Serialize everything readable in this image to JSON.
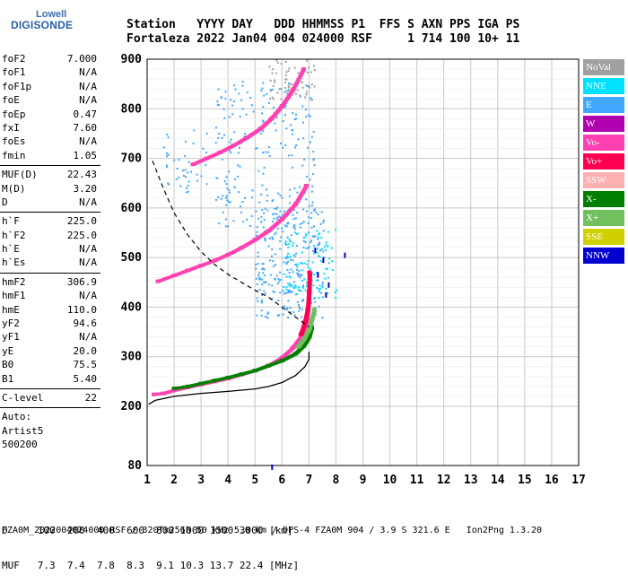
{
  "logo": {
    "top": "Lowell",
    "bottom": "DIGISONDE"
  },
  "header": {
    "line1": "Station   YYYY DAY   DDD HHMMSS P1  FFS S AXN PPS IGA PS",
    "line2": "Fortaleza 2022 Jan04 004 024000 RSF     1 714 100 10+ 11"
  },
  "params": {
    "group1": [
      {
        "name": "foF2",
        "value": "7.000"
      },
      {
        "name": "foF1",
        "value": "N/A"
      },
      {
        "name": "foF1p",
        "value": "N/A"
      },
      {
        "name": "foE",
        "value": "N/A"
      },
      {
        "name": "foEp",
        "value": "0.47"
      },
      {
        "name": "fxI",
        "value": "7.60"
      },
      {
        "name": "foEs",
        "value": "N/A"
      },
      {
        "name": "fmin",
        "value": "1.05"
      }
    ],
    "group2": [
      {
        "name": "MUF(D)",
        "value": "22.43"
      },
      {
        "name": "M(D)",
        "value": "3.20"
      },
      {
        "name": "D",
        "value": "N/A"
      }
    ],
    "group3": [
      {
        "name": "h`F",
        "value": "225.0"
      },
      {
        "name": "h`F2",
        "value": "225.0"
      },
      {
        "name": "h`E",
        "value": "N/A"
      },
      {
        "name": "h`Es",
        "value": "N/A"
      }
    ],
    "group4": [
      {
        "name": "hmF2",
        "value": "306.9"
      },
      {
        "name": "hmF1",
        "value": "N/A"
      },
      {
        "name": "hmE",
        "value": "110.0"
      },
      {
        "name": "yF2",
        "value": "94.6"
      },
      {
        "name": "yF1",
        "value": "N/A"
      },
      {
        "name": "yE",
        "value": "20.0"
      },
      {
        "name": "B0",
        "value": "75.5"
      },
      {
        "name": "B1",
        "value": "5.40"
      }
    ],
    "group5": [
      {
        "name": "C-level",
        "value": "22"
      }
    ],
    "auto": [
      "Auto:",
      "Artist5",
      "500200"
    ]
  },
  "legend": [
    {
      "label": "NoVal",
      "color": "#a0a0a0"
    },
    {
      "label": "NNE",
      "color": "#00e0ff"
    },
    {
      "label": "E",
      "color": "#40a8ff"
    },
    {
      "label": "W",
      "color": "#b000b0"
    },
    {
      "label": "Vo-",
      "color": "#ff40b0"
    },
    {
      "label": "Vo+",
      "color": "#ff0050"
    },
    {
      "label": "SSW",
      "color": "#ffb0b0"
    },
    {
      "label": "X-",
      "color": "#008000"
    },
    {
      "label": "X+",
      "color": "#70c060"
    },
    {
      "label": "SSE",
      "color": "#d0d000"
    },
    {
      "label": "NNW",
      "color": "#0000d0"
    }
  ],
  "footer": {
    "line1": "D     100  200  400  600  800 1000 1500 3000 [km]",
    "line2": "MUF   7.3  7.4  7.8  8.3  9.1 10.3 13.7 22.4 [MHz]",
    "line3": "FZA0M_2022004024000.RSF / 320fx256h 50 kHz 5.0 km / DPS-4 FZA0M 904 / 3.9 S 321.6 E   Ion2Png 1.3.20"
  },
  "chart_data": {
    "type": "scatter",
    "title": "",
    "xlabel": "",
    "ylabel": "",
    "xlim": [
      1,
      17
    ],
    "ylim": [
      80,
      900
    ],
    "x_ticks": [
      1,
      2,
      3,
      4,
      5,
      6,
      7,
      8,
      9,
      10,
      11,
      12,
      13,
      14,
      15,
      16,
      17
    ],
    "y_ticks": [
      80,
      200,
      300,
      400,
      500,
      600,
      700,
      800,
      900
    ],
    "grid": true,
    "series": [
      {
        "name": "O-trace (Vo-)",
        "color": "#ff40b0",
        "x": [
          1.25,
          1.6,
          2.0,
          2.5,
          3.0,
          3.5,
          4.0,
          4.5,
          5.0,
          5.5,
          6.0,
          6.4,
          6.7,
          6.9,
          7.0
        ],
        "y": [
          224,
          226,
          232,
          238,
          244,
          250,
          256,
          264,
          272,
          282,
          298,
          318,
          340,
          365,
          420
        ]
      },
      {
        "name": "X-trace (X-)",
        "color": "#008000",
        "x": [
          2.0,
          2.5,
          3.0,
          3.5,
          4.0,
          4.5,
          5.0,
          5.5,
          6.0,
          6.5,
          6.8,
          7.0,
          7.1
        ],
        "y": [
          236,
          240,
          246,
          252,
          258,
          265,
          272,
          282,
          292,
          306,
          322,
          340,
          360
        ]
      },
      {
        "name": "X+ trace",
        "color": "#70c060",
        "x": [
          6.6,
          6.8,
          7.0,
          7.1,
          7.2
        ],
        "y": [
          320,
          335,
          355,
          375,
          395
        ]
      },
      {
        "name": "2nd hop O",
        "color": "#ff40b0",
        "x": [
          1.4,
          2.0,
          2.5,
          3.0,
          3.5,
          4.0,
          4.5,
          5.0,
          5.5,
          6.0,
          6.5,
          6.9
        ],
        "y": [
          452,
          464,
          474,
          484,
          494,
          506,
          520,
          536,
          554,
          578,
          608,
          645
        ]
      },
      {
        "name": "3rd hop O",
        "color": "#ff40b0",
        "x": [
          2.7,
          3.2,
          3.7,
          4.2,
          4.7,
          5.2,
          5.6,
          6.0,
          6.4,
          6.8
        ],
        "y": [
          688,
          700,
          712,
          726,
          742,
          760,
          780,
          806,
          838,
          880
        ]
      },
      {
        "name": "Vo+",
        "color": "#ff0050",
        "x": [
          6.7,
          6.85,
          6.95,
          7.0,
          7.02
        ],
        "y": [
          345,
          370,
          395,
          430,
          470
        ]
      }
    ],
    "profile": {
      "color": "#000000",
      "x": [
        1.05,
        1.3,
        2.0,
        3.0,
        4.0,
        5.0,
        5.5,
        6.0,
        6.5,
        6.85,
        7.0,
        7.0
      ],
      "y": [
        204,
        212,
        220,
        226,
        230,
        235,
        240,
        248,
        262,
        280,
        295,
        310
      ]
    },
    "dashed_curve": {
      "color": "#000000",
      "x": [
        1.2,
        1.6,
        2.0,
        2.5,
        3.0,
        3.5,
        4.0,
        4.5,
        5.0,
        5.5,
        6.0,
        6.5,
        7.0
      ],
      "y": [
        695,
        640,
        590,
        546,
        512,
        486,
        466,
        450,
        434,
        420,
        400,
        380,
        360
      ]
    }
  }
}
